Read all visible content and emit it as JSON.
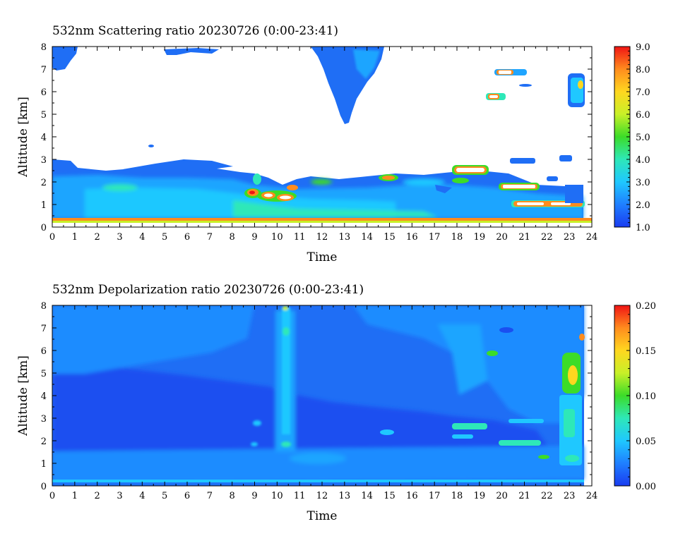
{
  "chart_data": [
    {
      "type": "heatmap",
      "title": "532nm Scattering ratio  20230726 (0:00-23:41)",
      "xlabel": "Time",
      "ylabel": "Altitude [km]",
      "xlim": [
        0,
        24
      ],
      "ylim": [
        0,
        8
      ],
      "x_ticks": [
        "0",
        "1",
        "2",
        "3",
        "4",
        "5",
        "6",
        "7",
        "8",
        "9",
        "10",
        "11",
        "12",
        "13",
        "14",
        "15",
        "16",
        "17",
        "18",
        "19",
        "20",
        "21",
        "22",
        "23",
        "24"
      ],
      "y_ticks": [
        "0",
        "1",
        "2",
        "3",
        "4",
        "5",
        "6",
        "7",
        "8"
      ],
      "colorbar": {
        "range": [
          1.0,
          9.0
        ],
        "ticks": [
          "1.0",
          "2.0",
          "3.0",
          "4.0",
          "5.0",
          "6.0",
          "7.0",
          "8.0",
          "9.0"
        ],
        "colors": [
          "#1a3cf0",
          "#1f7fff",
          "#1fc8ff",
          "#2ee8b8",
          "#3cdc28",
          "#c8f028",
          "#ffd71f",
          "#ff8c1e",
          "#f01414"
        ]
      },
      "data_end_time": 23.68,
      "features": [
        {
          "t": [
            0,
            23.68
          ],
          "z": [
            0,
            2.2
          ],
          "v": 2.2
        },
        {
          "t": [
            0,
            1.1
          ],
          "z": [
            7.0,
            8.0
          ],
          "v": 1.5
        },
        {
          "t": [
            12.0,
            14.7
          ],
          "z": [
            5.5,
            8.0
          ],
          "v": 1.6
        },
        {
          "t": [
            8.8,
            9.2
          ],
          "z": [
            1.3,
            1.7
          ],
          "v": 8.0
        },
        {
          "t": [
            9.6,
            10.6
          ],
          "z": [
            1.2,
            1.5
          ],
          "v": 8.5
        },
        {
          "t": [
            17.8,
            19.2
          ],
          "z": [
            2.3,
            2.7
          ],
          "v": 8.5
        },
        {
          "t": [
            19.8,
            20.8
          ],
          "z": [
            6.7,
            7.0
          ],
          "v": 6.0
        },
        {
          "t": [
            19.4,
            19.9
          ],
          "z": [
            5.6,
            5.9
          ],
          "v": 6.5
        },
        {
          "t": [
            20.0,
            21.6
          ],
          "z": [
            1.6,
            1.9
          ],
          "v": 8.0
        },
        {
          "t": [
            21.5,
            23.6
          ],
          "z": [
            0.9,
            1.1
          ],
          "v": 8.5
        },
        {
          "t": [
            23.0,
            23.6
          ],
          "z": [
            5.4,
            6.7
          ],
          "v": 3.0
        },
        {
          "t": [
            14.5,
            15.5
          ],
          "z": [
            2.1,
            2.3
          ],
          "v": 6.0
        }
      ]
    },
    {
      "type": "heatmap",
      "title": "532nm Depolarization ratio  20230726 (0:00-23:41)",
      "xlabel": "Time",
      "ylabel": "Altitude [km]",
      "xlim": [
        0,
        24
      ],
      "ylim": [
        0,
        8
      ],
      "x_ticks": [
        "0",
        "1",
        "2",
        "3",
        "4",
        "5",
        "6",
        "7",
        "8",
        "9",
        "10",
        "11",
        "12",
        "13",
        "14",
        "15",
        "16",
        "17",
        "18",
        "19",
        "20",
        "21",
        "22",
        "23",
        "24"
      ],
      "y_ticks": [
        "0",
        "1",
        "2",
        "3",
        "4",
        "5",
        "6",
        "7",
        "8"
      ],
      "colorbar": {
        "range": [
          0.0,
          0.2
        ],
        "ticks": [
          "0.00",
          "0.05",
          "0.10",
          "0.15",
          "0.20"
        ],
        "colors": [
          "#1a3cf0",
          "#1f7fff",
          "#1fc8ff",
          "#2ee8b8",
          "#3cdc28",
          "#c8f028",
          "#ffd71f",
          "#ff8c1e",
          "#f01414"
        ]
      },
      "data_end_time": 23.68,
      "features": [
        {
          "t": [
            0,
            23.68
          ],
          "z": [
            0,
            8
          ],
          "v": 0.025
        },
        {
          "t": [
            10.1,
            10.5
          ],
          "z": [
            1.5,
            8.0
          ],
          "v": 0.045
        },
        {
          "t": [
            17.8,
            19.0
          ],
          "z": [
            2.4,
            2.7
          ],
          "v": 0.06
        },
        {
          "t": [
            20.0,
            21.8
          ],
          "z": [
            1.7,
            1.9
          ],
          "v": 0.06
        },
        {
          "t": [
            22.7,
            23.5
          ],
          "z": [
            4.3,
            5.8
          ],
          "v": 0.12
        },
        {
          "t": [
            23.0,
            23.6
          ],
          "z": [
            1.5,
            3.2
          ],
          "v": 0.08
        },
        {
          "t": [
            21.8,
            22.2
          ],
          "z": [
            1.2,
            1.4
          ],
          "v": 0.08
        },
        {
          "t": [
            19.4,
            19.7
          ],
          "z": [
            5.8,
            6.0
          ],
          "v": 0.09
        }
      ]
    }
  ]
}
